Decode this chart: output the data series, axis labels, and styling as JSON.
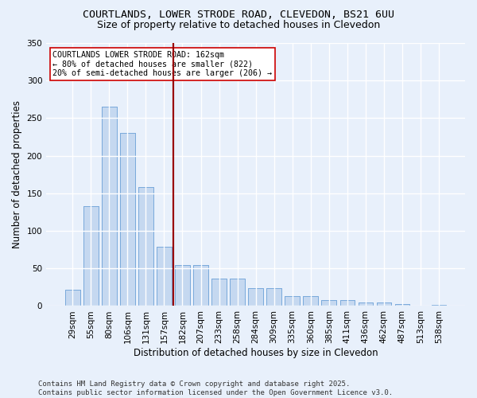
{
  "title_line1": "COURTLANDS, LOWER STRODE ROAD, CLEVEDON, BS21 6UU",
  "title_line2": "Size of property relative to detached houses in Clevedon",
  "xlabel": "Distribution of detached houses by size in Clevedon",
  "ylabel": "Number of detached properties",
  "categories": [
    "29sqm",
    "55sqm",
    "80sqm",
    "106sqm",
    "131sqm",
    "157sqm",
    "182sqm",
    "207sqm",
    "233sqm",
    "258sqm",
    "284sqm",
    "309sqm",
    "335sqm",
    "360sqm",
    "385sqm",
    "411sqm",
    "436sqm",
    "462sqm",
    "487sqm",
    "513sqm",
    "538sqm"
  ],
  "values": [
    22,
    133,
    265,
    230,
    158,
    79,
    54,
    54,
    37,
    37,
    24,
    24,
    13,
    13,
    8,
    8,
    5,
    5,
    3,
    1,
    2
  ],
  "bar_color": "#c5d8f0",
  "bar_edge_color": "#7aaadb",
  "vline_x": 5.5,
  "vline_color": "#990000",
  "annotation_text": "COURTLANDS LOWER STRODE ROAD: 162sqm\n← 80% of detached houses are smaller (822)\n20% of semi-detached houses are larger (206) →",
  "annotation_box_color": "#ffffff",
  "annotation_box_edge": "#cc0000",
  "ylim": [
    0,
    350
  ],
  "yticks": [
    0,
    50,
    100,
    150,
    200,
    250,
    300,
    350
  ],
  "footer_line1": "Contains HM Land Registry data © Crown copyright and database right 2025.",
  "footer_line2": "Contains public sector information licensed under the Open Government Licence v3.0.",
  "background_color": "#e8f0fb",
  "plot_background": "#e8f0fb",
  "grid_color": "#ffffff",
  "title_fontsize": 9.5,
  "subtitle_fontsize": 9,
  "axis_label_fontsize": 8.5,
  "tick_fontsize": 7.5,
  "annotation_fontsize": 7.2,
  "footer_fontsize": 6.5
}
